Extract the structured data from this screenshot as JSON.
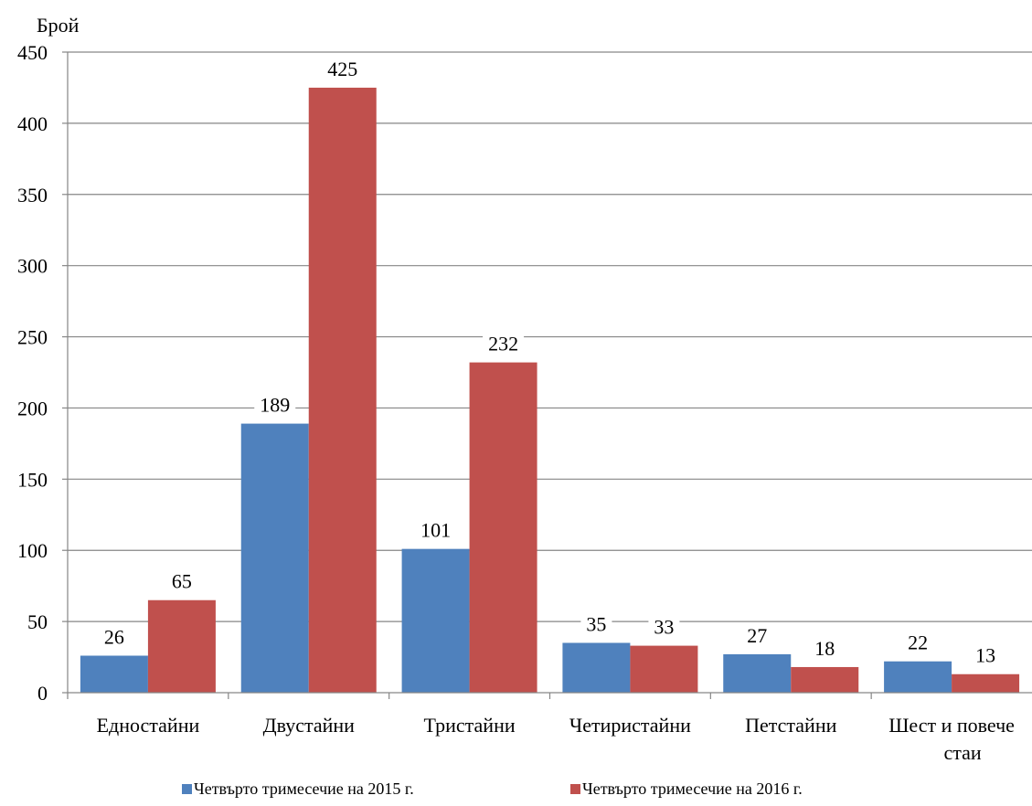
{
  "chart_data": {
    "type": "bar",
    "ylabel": "Брой",
    "xlabel": "",
    "title": "",
    "ylim": [
      0,
      450
    ],
    "yticks": [
      0,
      50,
      100,
      150,
      200,
      250,
      300,
      350,
      400,
      450
    ],
    "grid": true,
    "legend_position": "bottom",
    "categories": [
      [
        "Едностайни"
      ],
      [
        "Двустайни"
      ],
      [
        "Тристайни"
      ],
      [
        "Четиристайни"
      ],
      [
        "Петстайни"
      ],
      [
        "Шест и повече",
        "стаи"
      ]
    ],
    "series": [
      {
        "name": "Четвърто тримесечие на 2015 г.",
        "color": "#4f81bd",
        "values": [
          26,
          189,
          101,
          35,
          27,
          22
        ]
      },
      {
        "name": "Четвърто тримесечие на 2016 г.",
        "color": "#c0504d",
        "values": [
          65,
          425,
          232,
          33,
          18,
          13
        ]
      }
    ]
  }
}
